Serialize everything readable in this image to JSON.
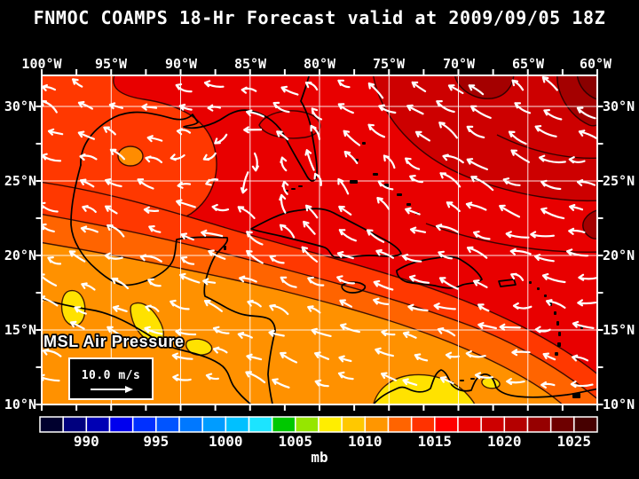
{
  "title": "FNMOC COAMPS 18-Hr Forecast valid at 2009/09/05 18Z",
  "axes": {
    "top": [
      "100°W",
      "95°W",
      "90°W",
      "85°W",
      "80°W",
      "75°W",
      "70°W",
      "65°W",
      "60°W"
    ],
    "left": [
      "30°N",
      "25°N",
      "20°N",
      "15°N",
      "10°N"
    ],
    "right": [
      "30°N",
      "25°N",
      "20°N",
      "15°N",
      "10°N"
    ]
  },
  "map_overlay": {
    "field_label": "MSL Air Pressure",
    "wind_reference_label": "10.0 m/s"
  },
  "colorbar": {
    "unit": "mb",
    "tick_labels": [
      "990",
      "995",
      "1000",
      "1005",
      "1010",
      "1015",
      "1020",
      "1025"
    ],
    "cell_colors": [
      "#00002e",
      "#00007e",
      "#0000b4",
      "#0000ee",
      "#0030ff",
      "#0054ff",
      "#0078ff",
      "#009cff",
      "#00c0ff",
      "#1ce4ff",
      "#00c800",
      "#96e600",
      "#ffee00",
      "#ffc800",
      "#ff9600",
      "#ff6400",
      "#ff3200",
      "#ff0000",
      "#e60000",
      "#cd0000",
      "#b40000",
      "#960000",
      "#6e0000",
      "#460000"
    ]
  },
  "colors": {
    "background": "#000000",
    "grid": "#ffffff",
    "coastline": "#000000",
    "wind_arrows": "#ffffff"
  }
}
